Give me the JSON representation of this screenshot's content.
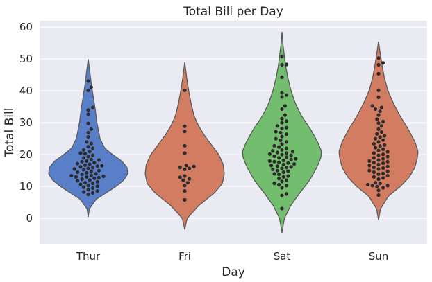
{
  "chart_data": {
    "type": "violin",
    "title": "Total Bill per Day",
    "xlabel": "Day",
    "ylabel": "Total Bill",
    "categories": [
      "Thur",
      "Fri",
      "Sat",
      "Sun"
    ],
    "ylim": [
      -8,
      62
    ],
    "yticks": [
      0,
      10,
      20,
      30,
      40,
      50,
      60
    ],
    "grid": true,
    "colors": [
      "#5a7fc9",
      "#d27d62",
      "#72bd6e",
      "#d27d62"
    ],
    "violins": [
      {
        "category": "Thur",
        "profile": [
          [
            0.5,
            0.0
          ],
          [
            3,
            0.03
          ],
          [
            6,
            0.2
          ],
          [
            8,
            0.45
          ],
          [
            10,
            0.7
          ],
          [
            12,
            0.9
          ],
          [
            14,
            1.0
          ],
          [
            16,
            0.98
          ],
          [
            18,
            0.85
          ],
          [
            20,
            0.62
          ],
          [
            22,
            0.42
          ],
          [
            25,
            0.3
          ],
          [
            30,
            0.22
          ],
          [
            34,
            0.18
          ],
          [
            38,
            0.13
          ],
          [
            42,
            0.08
          ],
          [
            46,
            0.04
          ],
          [
            50,
            0.0
          ]
        ],
        "points": [
          7.5,
          8.0,
          8.3,
          8.6,
          9.0,
          9.5,
          9.8,
          10.1,
          10.3,
          10.7,
          11.0,
          11.2,
          11.5,
          11.8,
          12.0,
          12.3,
          12.6,
          12.8,
          13.0,
          13.0,
          13.2,
          13.4,
          13.5,
          13.8,
          14.0,
          14.3,
          14.5,
          14.8,
          15.0,
          15.3,
          15.5,
          15.7,
          16.0,
          16.2,
          16.4,
          16.5,
          16.7,
          17.0,
          17.2,
          17.5,
          17.8,
          18.0,
          18.3,
          18.5,
          19.0,
          19.4,
          19.8,
          20.3,
          20.5,
          21.0,
          21.5,
          22.0,
          22.5,
          23.5,
          24.0,
          25.6,
          26.9,
          28.0,
          29.8,
          32.7,
          34.0,
          34.8,
          40.2,
          41.2,
          43.1
        ]
      },
      {
        "category": "Fri",
        "profile": [
          [
            -3.5,
            0.0
          ],
          [
            0,
            0.06
          ],
          [
            4,
            0.35
          ],
          [
            8,
            0.75
          ],
          [
            11,
            0.95
          ],
          [
            14,
            1.0
          ],
          [
            17,
            0.97
          ],
          [
            20,
            0.86
          ],
          [
            23,
            0.68
          ],
          [
            26,
            0.5
          ],
          [
            29,
            0.35
          ],
          [
            32,
            0.24
          ],
          [
            36,
            0.16
          ],
          [
            40,
            0.1
          ],
          [
            44,
            0.05
          ],
          [
            49,
            0.0
          ]
        ],
        "points": [
          5.8,
          8.6,
          10.3,
          11.2,
          12.0,
          12.4,
          12.9,
          13.3,
          15.4,
          15.7,
          16.0,
          16.3,
          16.6,
          20.5,
          22.8,
          27.3,
          28.9,
          40.2
        ]
      },
      {
        "category": "Sat",
        "profile": [
          [
            -4.5,
            0.0
          ],
          [
            0,
            0.06
          ],
          [
            4,
            0.22
          ],
          [
            8,
            0.45
          ],
          [
            12,
            0.7
          ],
          [
            16,
            0.88
          ],
          [
            19,
            0.98
          ],
          [
            21,
            1.0
          ],
          [
            24,
            0.9
          ],
          [
            28,
            0.72
          ],
          [
            32,
            0.5
          ],
          [
            36,
            0.34
          ],
          [
            40,
            0.23
          ],
          [
            44,
            0.15
          ],
          [
            48,
            0.09
          ],
          [
            52,
            0.05
          ],
          [
            55,
            0.02
          ],
          [
            58.5,
            0.0
          ]
        ],
        "points": [
          3.1,
          7.2,
          7.7,
          9.6,
          10.3,
          10.6,
          11.0,
          11.6,
          12.0,
          12.5,
          13.0,
          13.3,
          13.8,
          14.0,
          14.5,
          14.8,
          15.0,
          15.4,
          15.7,
          16.0,
          16.2,
          16.4,
          16.6,
          16.9,
          17.1,
          17.4,
          17.6,
          17.8,
          18.0,
          18.2,
          18.5,
          18.7,
          19.0,
          19.2,
          19.5,
          19.8,
          20.0,
          20.2,
          20.5,
          20.7,
          21.0,
          21.2,
          21.5,
          22.0,
          22.4,
          22.8,
          23.3,
          24.0,
          24.5,
          25.0,
          25.7,
          26.4,
          26.9,
          27.2,
          28.2,
          28.5,
          29.0,
          30.0,
          30.5,
          31.3,
          32.4,
          34.3,
          35.3,
          38.1,
          38.7,
          39.4,
          44.3,
          48.2,
          48.3,
          50.8
        ]
      },
      {
        "category": "Sun",
        "profile": [
          [
            -0.5,
            0.0
          ],
          [
            3,
            0.05
          ],
          [
            7,
            0.25
          ],
          [
            10,
            0.55
          ],
          [
            13,
            0.78
          ],
          [
            16,
            0.92
          ],
          [
            19,
            0.98
          ],
          [
            21,
            1.0
          ],
          [
            24,
            0.92
          ],
          [
            28,
            0.75
          ],
          [
            32,
            0.55
          ],
          [
            36,
            0.38
          ],
          [
            40,
            0.24
          ],
          [
            44,
            0.15
          ],
          [
            48,
            0.09
          ],
          [
            52,
            0.04
          ],
          [
            55.5,
            0.0
          ]
        ],
        "points": [
          7.3,
          8.8,
          9.6,
          10.0,
          10.3,
          10.3,
          10.6,
          11.0,
          11.2,
          12.3,
          12.7,
          13.0,
          13.4,
          13.9,
          14.1,
          14.5,
          14.8,
          15.0,
          15.5,
          15.8,
          16.0,
          16.3,
          16.6,
          16.9,
          17.3,
          17.5,
          17.8,
          18.0,
          18.3,
          18.7,
          19.0,
          19.4,
          19.8,
          20.1,
          20.5,
          20.9,
          21.3,
          21.7,
          22.2,
          22.7,
          23.0,
          23.4,
          24.0,
          24.6,
          25.0,
          25.5,
          25.9,
          26.5,
          27.1,
          28.0,
          29.0,
          29.9,
          30.4,
          31.1,
          32.4,
          33.6,
          34.3,
          34.8,
          35.3,
          38.0,
          40.2,
          45.4,
          48.2,
          48.8,
          50.3
        ]
      }
    ]
  }
}
